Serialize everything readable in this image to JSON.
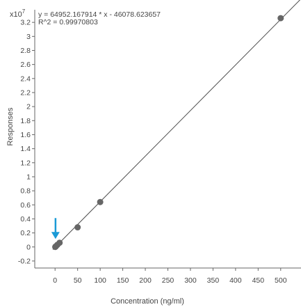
{
  "chart_data": {
    "type": "scatter",
    "equation": "y = 64952.167914 * x  - 46078.623657",
    "r_squared": "R^2 = 0.99970803",
    "y_multiplier_base": "x10",
    "y_multiplier_exp": "7",
    "xlabel": "Concentration (ng/ml)",
    "ylabel": "Responses",
    "xlim": [
      -45,
      545
    ],
    "ylim": [
      -0.3,
      3.38
    ],
    "x_ticks": [
      "0",
      "50",
      "100",
      "150",
      "200",
      "250",
      "300",
      "350",
      "400",
      "450",
      "500"
    ],
    "y_ticks": [
      "-0.2",
      "0",
      "0.2",
      "0.4",
      "0.6",
      "0.8",
      "1",
      "1.2",
      "1.4",
      "1.6",
      "1.8",
      "2",
      "2.2",
      "2.4",
      "2.6",
      "2.8",
      "3",
      "3.2"
    ],
    "fit": {
      "slope": 0.0064952167914,
      "intercept": -0.0046078623657,
      "x_range": [
        -5,
        545
      ]
    },
    "series": [
      {
        "points": [
          {
            "x": 0.5,
            "y": 0.0
          },
          {
            "x": 1,
            "y": 0.005
          },
          {
            "x": 2,
            "y": 0.01
          },
          {
            "x": 5,
            "y": 0.03
          },
          {
            "x": 10,
            "y": 0.06
          },
          {
            "x": 50,
            "y": 0.28
          },
          {
            "x": 100,
            "y": 0.64
          },
          {
            "x": 500,
            "y": 3.26
          }
        ]
      }
    ],
    "highlight": {
      "x": 1,
      "y": 0.005
    },
    "grid": false,
    "colors": {
      "line": "#4d4d4d",
      "point": "#666666",
      "arrow": "#1a9ad6",
      "axis": "#666666",
      "text": "#444444"
    }
  }
}
